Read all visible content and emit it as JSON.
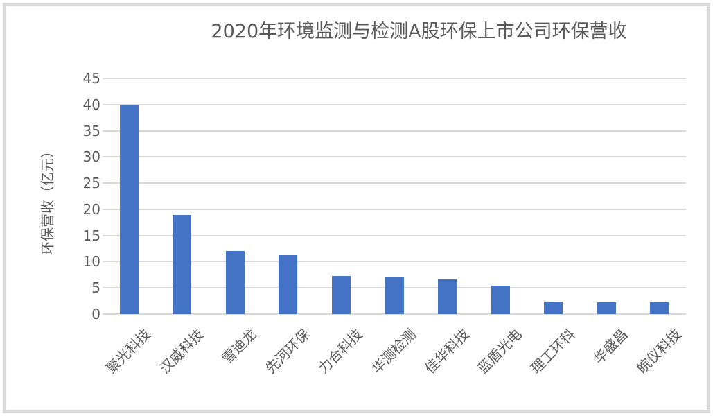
{
  "chart_data": {
    "type": "bar",
    "title": "2020年环境监测与检测A股环保上市公司环保营收",
    "xlabel": "",
    "ylabel": "环保营收（亿元）",
    "categories": [
      "聚光科技",
      "汉威科技",
      "雪迪龙",
      "先河环保",
      "力合科技",
      "华测检测",
      "佳华科技",
      "蓝盾光电",
      "理工环科",
      "华盛昌",
      "皖仪科技"
    ],
    "values": [
      39.9,
      18.9,
      12.1,
      11.2,
      7.3,
      7.0,
      6.6,
      5.4,
      2.4,
      2.3,
      2.2
    ],
    "ylim": [
      0,
      45
    ],
    "yticks": [
      0,
      5,
      10,
      15,
      20,
      25,
      30,
      35,
      40,
      45
    ],
    "grid": true,
    "legend": false,
    "bar_color": "#4472c4",
    "gridline_color": "#d9d9d9",
    "text_color": "#595959",
    "frame_border_color": "#dadada"
  }
}
